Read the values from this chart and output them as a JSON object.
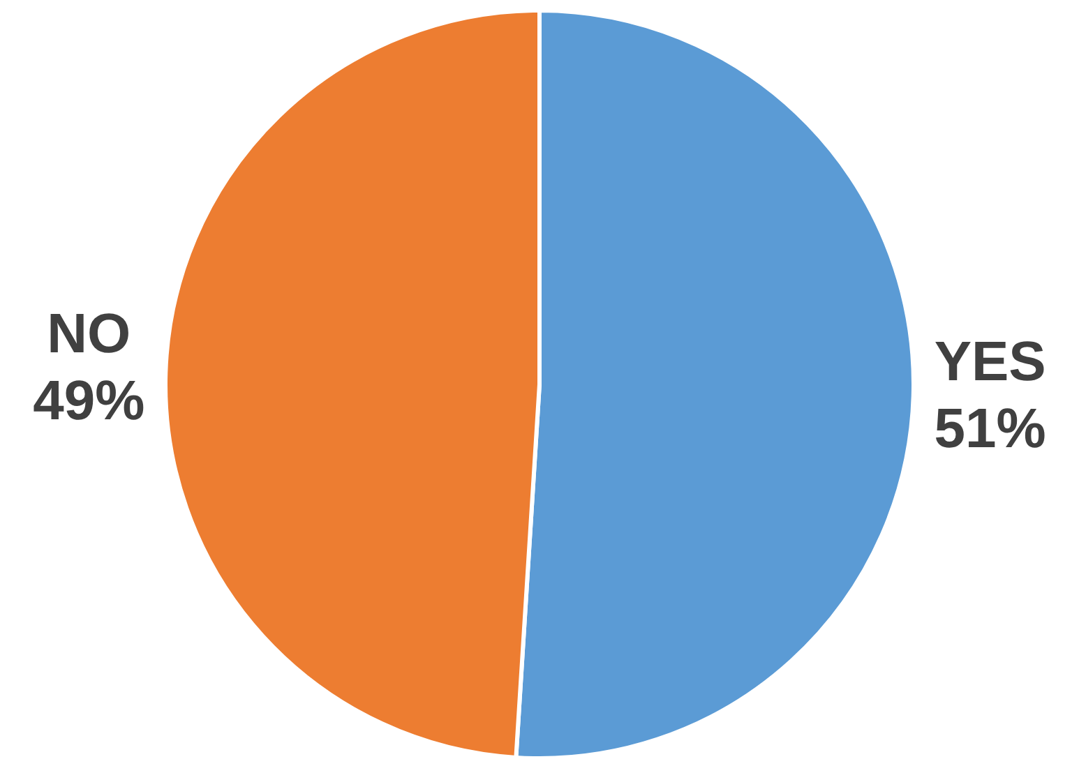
{
  "chart_data": {
    "type": "pie",
    "categories": [
      "YES",
      "NO"
    ],
    "values": [
      51,
      49
    ],
    "colors": [
      "#5b9bd5",
      "#ed7d31"
    ],
    "value_labels": [
      "51%",
      "49%"
    ],
    "legend": false
  }
}
